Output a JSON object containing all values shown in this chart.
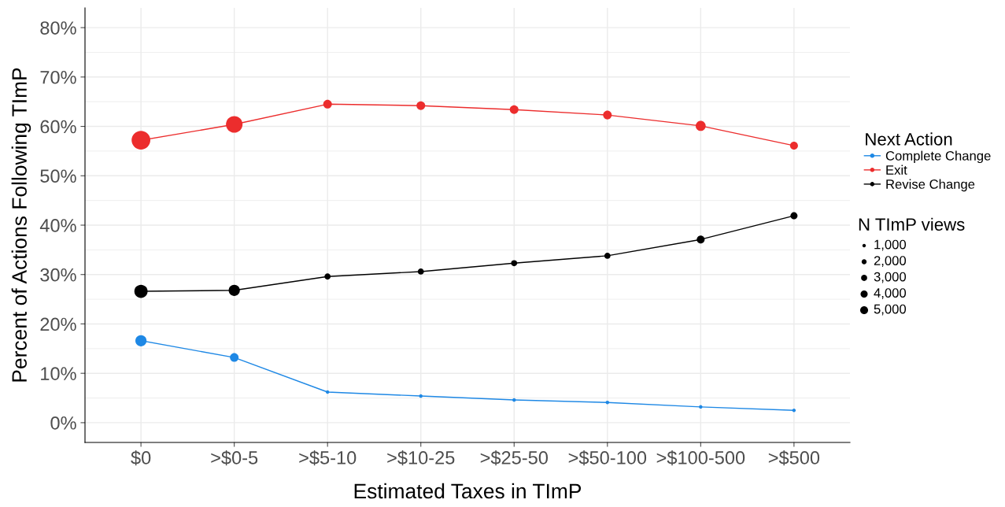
{
  "chart_data": {
    "type": "bubble",
    "xlabel": "Estimated Taxes in TImP",
    "ylabel": "Percent of Actions Following TImP",
    "categories": [
      "$0",
      ">$0-5",
      ">$5-10",
      ">$10-25",
      ">$25-50",
      ">$50-100",
      ">$100-500",
      ">$500"
    ],
    "series": [
      {
        "name": "Complete Change",
        "color": "#1e88e5",
        "values": [
          16.6,
          13.2,
          6.2,
          5.4,
          4.6,
          4.1,
          3.2,
          2.5
        ],
        "sizes": [
          10000,
          6000,
          1000,
          1000,
          1000,
          1000,
          1000,
          1000
        ]
      },
      {
        "name": "Exit",
        "color": "#ec2d2d",
        "values": [
          57.2,
          60.4,
          64.5,
          64.2,
          63.4,
          62.3,
          60.1,
          56.1
        ],
        "sizes": [
          28000,
          22000,
          6000,
          6000,
          6000,
          6000,
          8000,
          5000
        ]
      },
      {
        "name": "Revise Change",
        "color": "#000000",
        "values": [
          26.6,
          26.8,
          29.6,
          30.6,
          32.3,
          33.8,
          37.1,
          41.9
        ],
        "sizes": [
          14000,
          10000,
          3000,
          3000,
          3000,
          3000,
          5000,
          4000
        ]
      },
      {
        "type": "line",
        "marker": "none",
        "color": "#1e88e5",
        "values": [
          16.6,
          13.2,
          6.2,
          5.4,
          4.6,
          4.1,
          3.2,
          2.5
        ]
      },
      {
        "type": "line",
        "marker": "none",
        "color": "#ec2d2d",
        "values": [
          57.2,
          60.4,
          64.5,
          64.2,
          63.4,
          62.3,
          60.1,
          56.1
        ]
      },
      {
        "type": "line",
        "marker": "none",
        "color": "#000000",
        "values": [
          26.6,
          26.8,
          29.6,
          30.6,
          32.3,
          33.8,
          37.1,
          41.9
        ]
      }
    ],
    "legend_title": "Next Action",
    "annotations": [
      "N TImP views"
    ],
    "size_legend": [
      {
        "value": 1000,
        "label": "1,000"
      },
      {
        "value": 2000,
        "label": "2,000"
      },
      {
        "value": 3000,
        "label": "3,000"
      },
      {
        "value": 4000,
        "label": "4,000"
      },
      {
        "value": 5000,
        "label": "5,000"
      }
    ],
    "ylim": [
      -4,
      84
    ],
    "yticks": [
      {
        "value": 0,
        "label": "0%"
      },
      {
        "value": 10,
        "label": "10%"
      },
      {
        "value": 20,
        "label": "20%"
      },
      {
        "value": 30,
        "label": "30%"
      },
      {
        "value": 40,
        "label": "40%"
      },
      {
        "value": 50,
        "label": "50%"
      },
      {
        "value": 60,
        "label": "60%"
      },
      {
        "value": 70,
        "label": "70%"
      },
      {
        "value": 80,
        "label": "80%"
      }
    ],
    "grid": true,
    "legend": "right",
    "marker": "circle",
    "line_style": "solid"
  }
}
